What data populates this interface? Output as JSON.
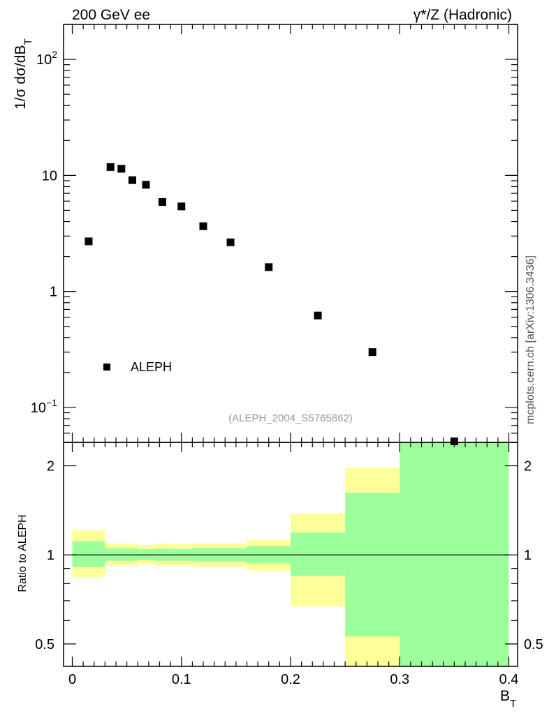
{
  "header": {
    "left": "200 GeV ee",
    "right": "γ*/Z (Hadronic)"
  },
  "side_credit": "mcplots.cern.ch [arXiv:1306.3436]",
  "analysis_tag": "(ALEPH_2004_S5765862)",
  "chart_data": [
    {
      "type": "scatter",
      "panel": "main",
      "ylabel": "1/σ dσ/dB_T",
      "yscale": "log",
      "ylim": [
        0.05,
        200
      ],
      "xlim": [
        -0.008,
        0.408
      ],
      "ytick_labels": [
        "10⁻¹",
        "1",
        "10",
        "10²"
      ],
      "legend": {
        "placement": "lower-left",
        "entries": [
          "ALEPH"
        ]
      },
      "series": [
        {
          "name": "ALEPH",
          "marker": "square",
          "color": "#000000",
          "x": [
            0.015,
            0.035,
            0.045,
            0.055,
            0.0675,
            0.0825,
            0.1,
            0.12,
            0.145,
            0.18,
            0.225,
            0.275,
            0.35
          ],
          "y": [
            2.7,
            11.8,
            11.4,
            9.1,
            8.3,
            5.9,
            5.4,
            3.65,
            2.65,
            1.62,
            0.62,
            0.3,
            0.051
          ]
        }
      ]
    },
    {
      "type": "area",
      "panel": "ratio",
      "ylabel": "Ratio to ALEPH",
      "xlabel": "B_T",
      "yscale": "log",
      "ylim": [
        0.42,
        2.4
      ],
      "xlim": [
        -0.008,
        0.408
      ],
      "x_tick_labels": [
        "0",
        "0.1",
        "0.2",
        "0.3",
        "0.4"
      ],
      "y_tick_labels": [
        "0.5",
        "1",
        "2"
      ],
      "reference_line": 1.0,
      "bins": [
        {
          "lo": 0.0,
          "hi": 0.03,
          "inner": [
            0.91,
            1.11
          ],
          "outer": [
            0.84,
            1.21
          ]
        },
        {
          "lo": 0.03,
          "hi": 0.06,
          "inner": [
            0.955,
            1.053
          ],
          "outer": [
            0.92,
            1.09
          ]
        },
        {
          "lo": 0.06,
          "hi": 0.075,
          "inner": [
            0.96,
            1.045
          ],
          "outer": [
            0.93,
            1.08
          ]
        },
        {
          "lo": 0.075,
          "hi": 0.09,
          "inner": [
            0.955,
            1.05
          ],
          "outer": [
            0.92,
            1.09
          ]
        },
        {
          "lo": 0.09,
          "hi": 0.11,
          "inner": [
            0.955,
            1.048
          ],
          "outer": [
            0.92,
            1.085
          ]
        },
        {
          "lo": 0.11,
          "hi": 0.16,
          "inner": [
            0.95,
            1.055
          ],
          "outer": [
            0.91,
            1.095
          ]
        },
        {
          "lo": 0.16,
          "hi": 0.2,
          "inner": [
            0.935,
            1.07
          ],
          "outer": [
            0.885,
            1.125
          ]
        },
        {
          "lo": 0.2,
          "hi": 0.25,
          "inner": [
            0.85,
            1.19
          ],
          "outer": [
            0.67,
            1.38
          ]
        },
        {
          "lo": 0.25,
          "hi": 0.3,
          "inner": [
            0.53,
            1.62
          ],
          "outer": [
            0.35,
            1.97
          ]
        },
        {
          "lo": 0.3,
          "hi": 0.4,
          "inner": [
            0.35,
            2.45
          ],
          "outer": [
            0.35,
            2.45
          ]
        }
      ],
      "colors": {
        "inner": "#9cff9c",
        "outer": "#ffff99"
      }
    }
  ]
}
